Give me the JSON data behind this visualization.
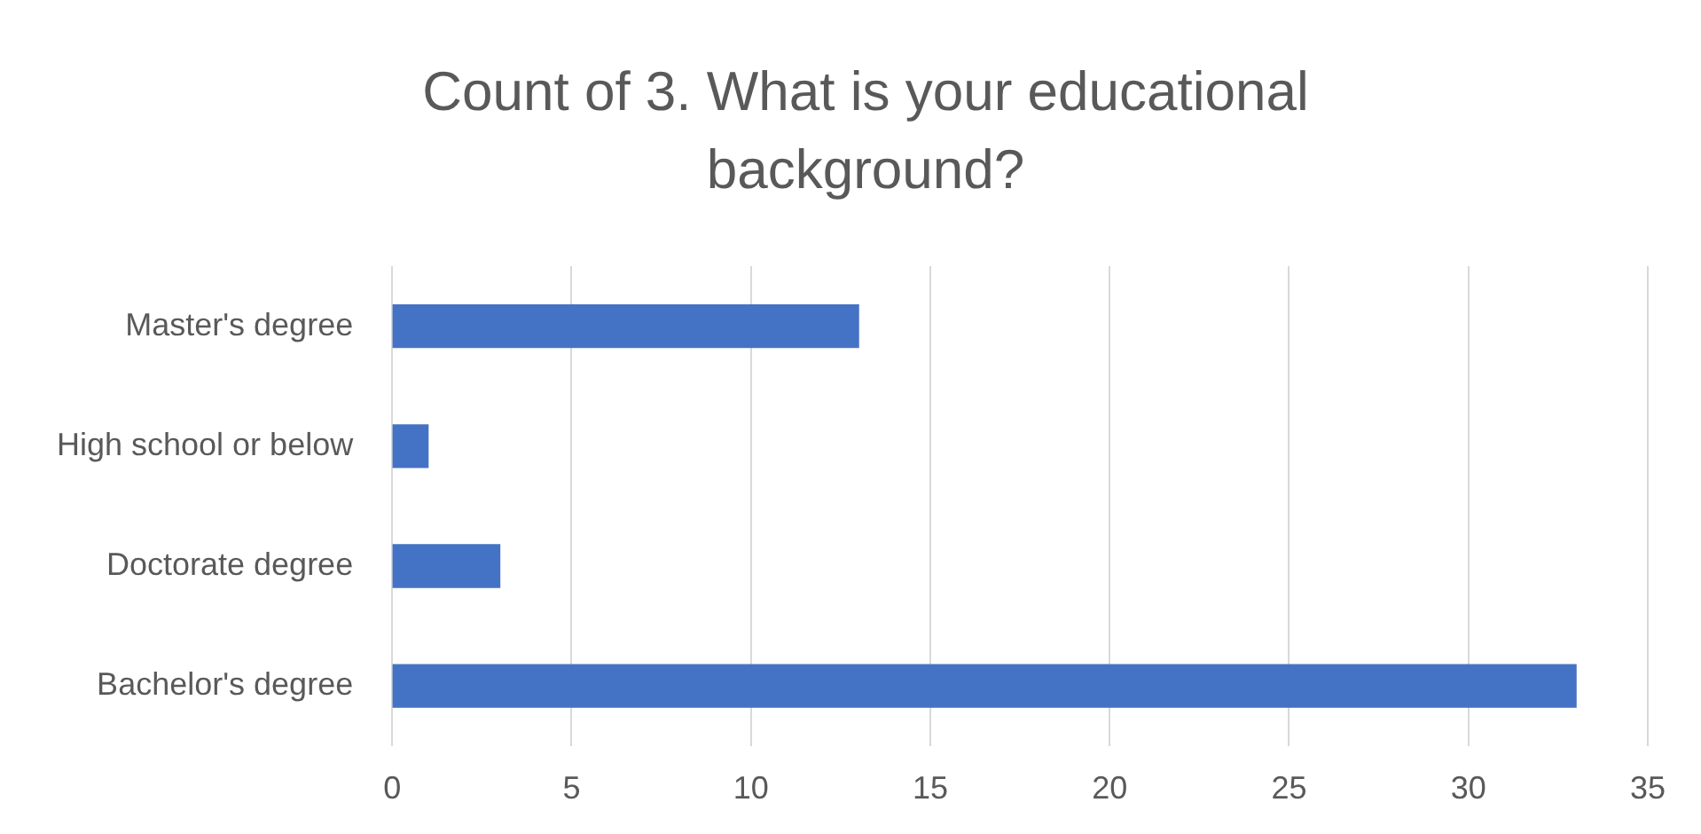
{
  "chart_data": {
    "type": "bar",
    "orientation": "horizontal",
    "title": "Count of 3. What is your educational background?",
    "categories": [
      "Master's degree",
      "High school or below",
      "Doctorate degree",
      "Bachelor's degree"
    ],
    "values": [
      13,
      1,
      3,
      33
    ],
    "color": "#4472c4",
    "xlim": [
      0,
      35
    ],
    "xticks": [
      0,
      5,
      10,
      15,
      20,
      25,
      30,
      35
    ],
    "grid": "x"
  }
}
